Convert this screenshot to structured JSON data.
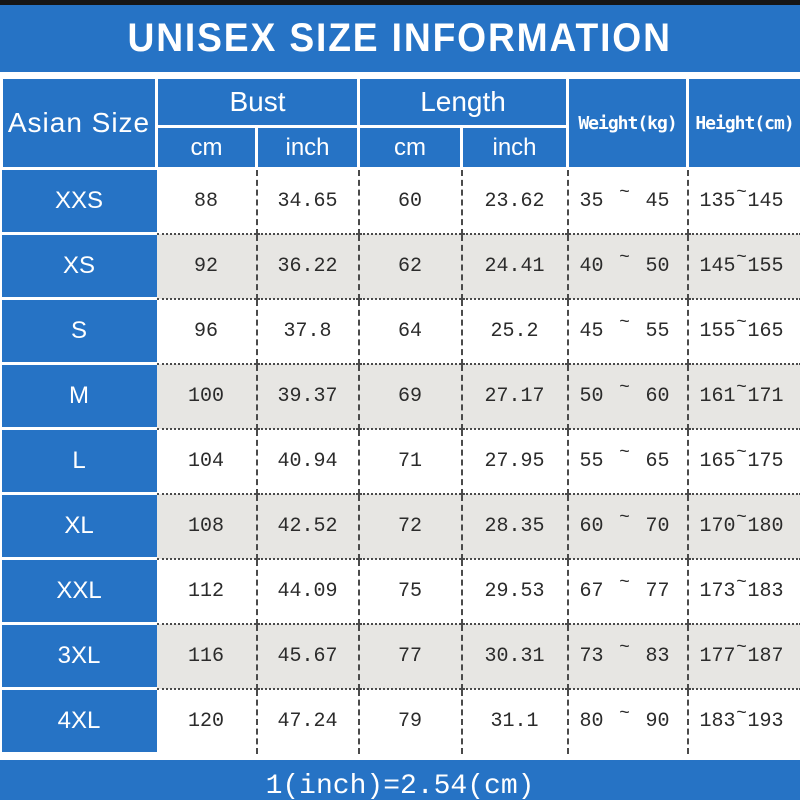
{
  "title": "UNISEX SIZE INFORMATION",
  "footer_note": "1(inch)=2.54(cm)",
  "colors": {
    "blue": "#2673C5",
    "row_alt": "#E7E6E3",
    "bar_black": "#161616",
    "text_dark": "#2b2b2b",
    "white": "#ffffff"
  },
  "table": {
    "size_col_header": "Asian Size",
    "groups": [
      {
        "label": "Bust",
        "sub": [
          "cm",
          "inch"
        ]
      },
      {
        "label": "Length",
        "sub": [
          "cm",
          "inch"
        ]
      }
    ],
    "weight_header": "Weight(kg)",
    "height_header": "Height(cm)",
    "range_separator": "~",
    "rows": [
      {
        "size": "XXS",
        "bust": {
          "cm": "88",
          "inch": "34.65"
        },
        "length": {
          "cm": "60",
          "inch": "23.62"
        },
        "weight": {
          "min": "35",
          "max": "45"
        },
        "height": {
          "min": "135",
          "max": "145"
        }
      },
      {
        "size": "XS",
        "bust": {
          "cm": "92",
          "inch": "36.22"
        },
        "length": {
          "cm": "62",
          "inch": "24.41"
        },
        "weight": {
          "min": "40",
          "max": "50"
        },
        "height": {
          "min": "145",
          "max": "155"
        }
      },
      {
        "size": "S",
        "bust": {
          "cm": "96",
          "inch": "37.8"
        },
        "length": {
          "cm": "64",
          "inch": "25.2"
        },
        "weight": {
          "min": "45",
          "max": "55"
        },
        "height": {
          "min": "155",
          "max": "165"
        }
      },
      {
        "size": "M",
        "bust": {
          "cm": "100",
          "inch": "39.37"
        },
        "length": {
          "cm": "69",
          "inch": "27.17"
        },
        "weight": {
          "min": "50",
          "max": "60"
        },
        "height": {
          "min": "161",
          "max": "171"
        }
      },
      {
        "size": "L",
        "bust": {
          "cm": "104",
          "inch": "40.94"
        },
        "length": {
          "cm": "71",
          "inch": "27.95"
        },
        "weight": {
          "min": "55",
          "max": "65"
        },
        "height": {
          "min": "165",
          "max": "175"
        }
      },
      {
        "size": "XL",
        "bust": {
          "cm": "108",
          "inch": "42.52"
        },
        "length": {
          "cm": "72",
          "inch": "28.35"
        },
        "weight": {
          "min": "60",
          "max": "70"
        },
        "height": {
          "min": "170",
          "max": "180"
        }
      },
      {
        "size": "XXL",
        "bust": {
          "cm": "112",
          "inch": "44.09"
        },
        "length": {
          "cm": "75",
          "inch": "29.53"
        },
        "weight": {
          "min": "67",
          "max": "77"
        },
        "height": {
          "min": "173",
          "max": "183"
        }
      },
      {
        "size": "3XL",
        "bust": {
          "cm": "116",
          "inch": "45.67"
        },
        "length": {
          "cm": "77",
          "inch": "30.31"
        },
        "weight": {
          "min": "73",
          "max": "83"
        },
        "height": {
          "min": "177",
          "max": "187"
        }
      },
      {
        "size": "4XL",
        "bust": {
          "cm": "120",
          "inch": "47.24"
        },
        "length": {
          "cm": "79",
          "inch": "31.1"
        },
        "weight": {
          "min": "80",
          "max": "90"
        },
        "height": {
          "min": "183",
          "max": "193"
        }
      }
    ]
  }
}
